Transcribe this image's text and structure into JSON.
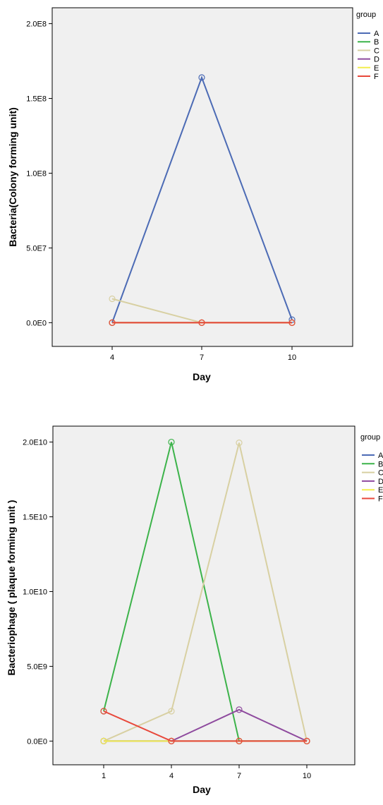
{
  "chart_data": [
    {
      "type": "line",
      "xlabel": "Day",
      "ylabel": "Bacteria(Colony forming unit)",
      "categories": [
        "4",
        "7",
        "10"
      ],
      "ylim": [
        0,
        200000000
      ],
      "y_ticks": [
        0,
        50000000,
        100000000,
        150000000,
        200000000
      ],
      "y_tick_labels": [
        "0.0E0",
        "5.0E7",
        "1.0E8",
        "1.5E8",
        "2.0E8"
      ],
      "grid": false,
      "legend": {
        "title": "group",
        "position": "right",
        "labels": [
          "A",
          "B",
          "C",
          "D",
          "E",
          "F"
        ],
        "colors": [
          "#4c6bb5",
          "#3cb34a",
          "#d8d0a2",
          "#8e4a9e",
          "#f2ee4e",
          "#e8483b"
        ]
      },
      "series": [
        {
          "name": "A",
          "color": "#4c6bb5",
          "values": [
            0,
            164000000,
            2000000
          ]
        },
        {
          "name": "B",
          "color": "#3cb34a",
          "values": [
            0,
            0,
            0
          ]
        },
        {
          "name": "C",
          "color": "#d8d0a2",
          "values": [
            16000000,
            0,
            0
          ]
        },
        {
          "name": "D",
          "color": "#8e4a9e",
          "values": [
            0,
            0,
            0
          ]
        },
        {
          "name": "E",
          "color": "#f2ee4e",
          "values": [
            0,
            0,
            0
          ]
        },
        {
          "name": "F",
          "color": "#e8483b",
          "values": [
            0,
            0,
            0
          ]
        }
      ]
    },
    {
      "type": "line",
      "xlabel": "Day",
      "ylabel": "Bacteriophage ( plaque forming unit )",
      "categories": [
        "1",
        "4",
        "7",
        "10"
      ],
      "ylim": [
        0,
        20000000000
      ],
      "y_ticks": [
        0,
        5000000000,
        10000000000,
        15000000000,
        20000000000
      ],
      "y_tick_labels": [
        "0.0E0",
        "5.0E9",
        "1.0E10",
        "1.5E10",
        "2.0E10"
      ],
      "grid": false,
      "legend": {
        "title": "group",
        "position": "right",
        "labels": [
          "A",
          "B",
          "C",
          "D",
          "E",
          "F"
        ],
        "colors": [
          "#4c6bb5",
          "#3cb34a",
          "#d8d0a2",
          "#8e4a9e",
          "#f2ee4e",
          "#e8483b"
        ]
      },
      "series": [
        {
          "name": "A",
          "color": "#4c6bb5",
          "values": [
            0,
            0,
            0,
            0
          ]
        },
        {
          "name": "B",
          "color": "#3cb34a",
          "values": [
            2000000000,
            20000000000,
            0,
            0
          ]
        },
        {
          "name": "C",
          "color": "#d8d0a2",
          "values": [
            0,
            2000000000,
            19950000000,
            0
          ]
        },
        {
          "name": "D",
          "color": "#8e4a9e",
          "values": [
            0,
            0,
            2100000000,
            0
          ]
        },
        {
          "name": "E",
          "color": "#f2ee4e",
          "values": [
            0,
            0,
            0,
            0
          ]
        },
        {
          "name": "F",
          "color": "#e8483b",
          "values": [
            2000000000,
            0,
            0,
            0
          ]
        }
      ]
    }
  ]
}
